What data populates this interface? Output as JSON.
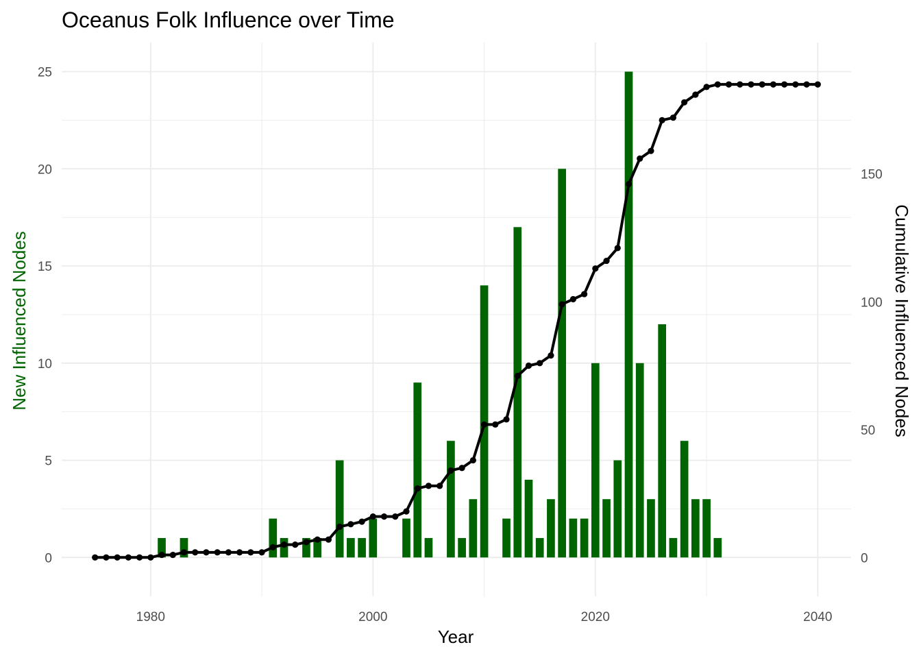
{
  "chart_data": {
    "type": "bar+line",
    "title": "Oceanus Folk Influence over Time",
    "xlabel": "Year",
    "ylabel_left": "New Influenced Nodes",
    "ylabel_right": "Cumulative Influenced Nodes",
    "xlim": [
      1972,
      2043
    ],
    "ylim_left": [
      -2,
      26.5
    ],
    "ylim_right": [
      -15.2,
      201.4
    ],
    "x_ticks": [
      1980,
      2000,
      2020,
      2040
    ],
    "y_ticks_left": [
      0,
      5,
      10,
      15,
      20,
      25
    ],
    "y_ticks_right": [
      0,
      50,
      100,
      150
    ],
    "grid": true,
    "colors": {
      "bars": "#006400",
      "line": "#000000",
      "left_axis_title": "#006400",
      "grid": "#ebebeb"
    },
    "x": [
      1975,
      1976,
      1977,
      1978,
      1979,
      1980,
      1981,
      1982,
      1983,
      1984,
      1985,
      1986,
      1987,
      1988,
      1989,
      1990,
      1991,
      1992,
      1993,
      1994,
      1995,
      1996,
      1997,
      1998,
      1999,
      2000,
      2001,
      2002,
      2003,
      2004,
      2005,
      2006,
      2007,
      2008,
      2009,
      2010,
      2011,
      2012,
      2013,
      2014,
      2015,
      2016,
      2017,
      2018,
      2019,
      2020,
      2021,
      2022,
      2023,
      2024,
      2025,
      2026,
      2027,
      2028,
      2029,
      2030,
      2031,
      2032,
      2033,
      2034,
      2035,
      2036,
      2037,
      2038,
      2039,
      2040
    ],
    "series": [
      {
        "kind": "bar",
        "axis": "left",
        "values": [
          0,
          0,
          0,
          0,
          0,
          0,
          1,
          0,
          1,
          0,
          0,
          0,
          0,
          0,
          0,
          0,
          2,
          1,
          0,
          1,
          1,
          0,
          5,
          1,
          1,
          2,
          0,
          0,
          2,
          9,
          1,
          0,
          6,
          1,
          3,
          14,
          0,
          2,
          17,
          4,
          1,
          3,
          20,
          2,
          2,
          10,
          3,
          5,
          25,
          10,
          3,
          12,
          1,
          6,
          3,
          3,
          1,
          0,
          0,
          0,
          0,
          0,
          0,
          0,
          0,
          0
        ]
      },
      {
        "kind": "line",
        "axis": "right",
        "values": [
          0,
          0,
          0,
          0,
          0,
          0,
          1,
          1,
          2,
          2,
          2,
          2,
          2,
          2,
          2,
          2,
          4,
          5,
          5,
          6,
          7,
          7,
          12,
          13,
          14,
          16,
          16,
          16,
          18,
          27,
          28,
          28,
          34,
          35,
          38,
          52,
          52,
          54,
          71,
          75,
          76,
          79,
          99,
          101,
          103,
          113,
          116,
          121,
          146,
          156,
          159,
          171,
          172,
          178,
          181,
          184,
          185,
          185,
          185,
          185,
          185,
          185,
          185,
          185,
          185,
          185
        ]
      }
    ]
  }
}
